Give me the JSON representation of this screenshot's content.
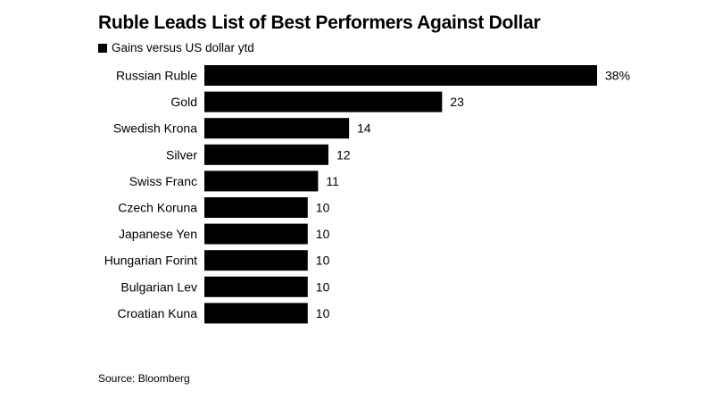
{
  "chart_data": {
    "type": "bar",
    "orientation": "horizontal",
    "title": "Ruble Leads List of Best Performers Against Dollar",
    "legend": [
      "Gains versus US dollar ytd"
    ],
    "legend_placement": "top-left",
    "categories": [
      "Russian Ruble",
      "Gold",
      "Swedish Krona",
      "Silver",
      "Swiss Franc",
      "Czech Koruna",
      "Japanese Yen",
      "Hungarian Forint",
      "Bulgarian Lev",
      "Croatian Kuna"
    ],
    "values": [
      38,
      23,
      14,
      12,
      11,
      10,
      10,
      10,
      10,
      10
    ],
    "data_labels": [
      "38%",
      "23",
      "14",
      "12",
      "11",
      "10",
      "10",
      "10",
      "10",
      "10"
    ],
    "xlim": [
      0,
      38
    ],
    "grid": false,
    "source": "Source: Bloomberg",
    "bar_color": "#000000"
  }
}
